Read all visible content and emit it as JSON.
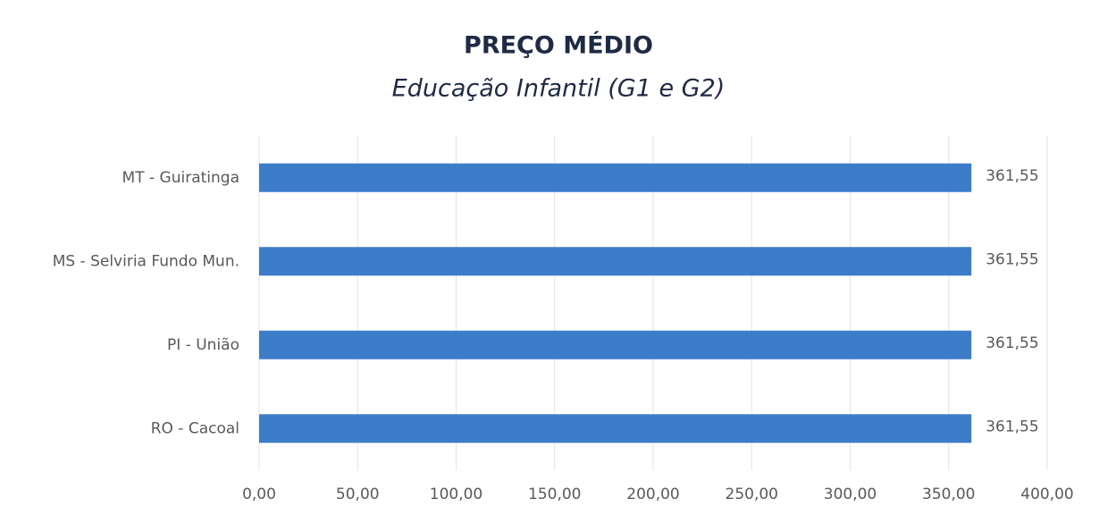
{
  "chart_data": {
    "type": "barh",
    "title": "PREÇO MÉDIO",
    "subtitle": "Educação Infantil (G1 e G2)",
    "categories": [
      "MT - Guiratinga",
      "MS - Selviria Fundo Mun.",
      "PI - União",
      "RO - Cacoal"
    ],
    "values": [
      361.55,
      361.55,
      361.55,
      361.55
    ],
    "value_labels": [
      "361,55",
      "361,55",
      "361,55",
      "361,55"
    ],
    "color": "#3d7cc9",
    "xlim": [
      0,
      400
    ],
    "xticks": [
      {
        "value": 0,
        "label": "0,00"
      },
      {
        "value": 50,
        "label": "50,00"
      },
      {
        "value": 100,
        "label": "100,00"
      },
      {
        "value": 150,
        "label": "150,00"
      },
      {
        "value": 200,
        "label": "200,00"
      },
      {
        "value": 250,
        "label": "250,00"
      },
      {
        "value": 300,
        "label": "300,00"
      },
      {
        "value": 350,
        "label": "350,00"
      },
      {
        "value": 400,
        "label": "400,00"
      }
    ],
    "grid": true
  }
}
